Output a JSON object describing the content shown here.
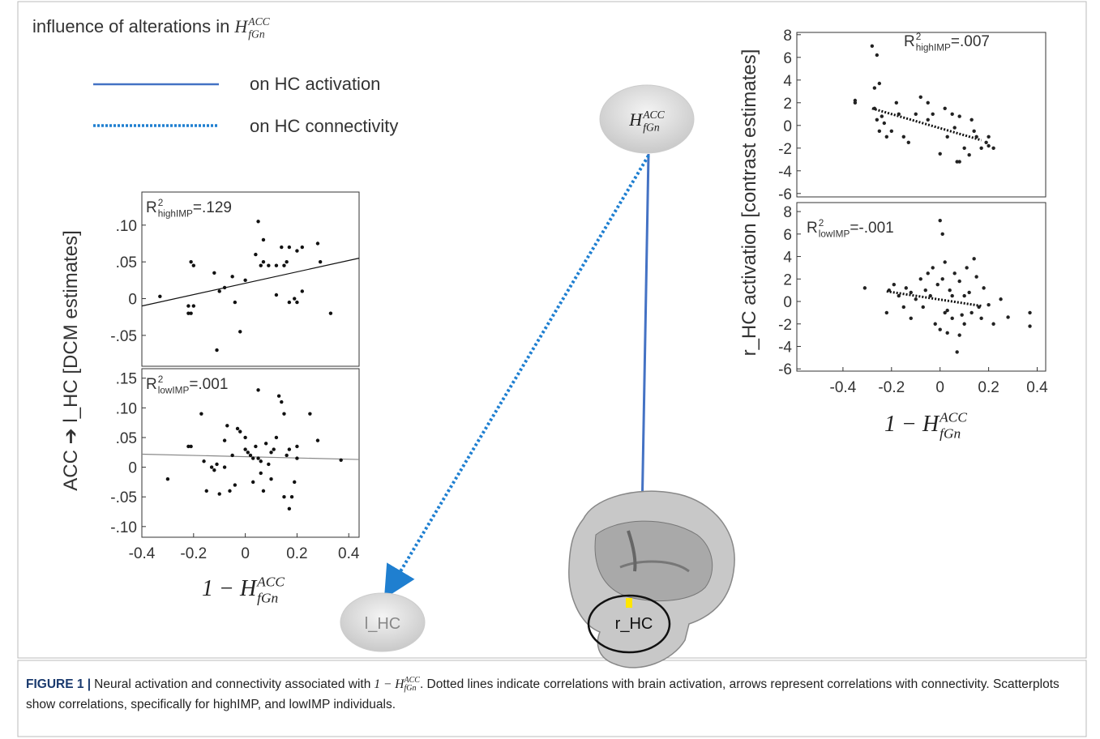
{
  "chart_data": [
    {
      "type": "scatter",
      "y_label": "ACC ➔ l_HC  [DCM estimates]",
      "annotation": {
        "base": "R",
        "superscript": "2",
        "subscript": "highIMP",
        "text": "=.129"
      },
      "x": [
        -0.33,
        -0.22,
        -0.21,
        -0.2,
        -0.2,
        -0.22,
        -0.21,
        -0.12,
        -0.1,
        -0.08,
        -0.05,
        -0.04,
        -0.02,
        0.0,
        -0.11,
        0.05,
        0.07,
        0.04,
        0.07,
        0.09,
        0.14,
        0.12,
        0.15,
        0.16,
        0.17,
        0.2,
        0.22,
        0.28,
        0.29,
        0.12,
        0.17,
        0.19,
        0.2,
        0.22,
        0.33,
        0.06
      ],
      "values": [
        0.003,
        -0.02,
        0.05,
        0.045,
        -0.01,
        -0.01,
        -0.02,
        0.035,
        0.01,
        0.015,
        0.03,
        -0.005,
        -0.045,
        0.025,
        -0.07,
        0.105,
        0.08,
        0.06,
        0.05,
        0.045,
        0.07,
        0.045,
        0.045,
        0.05,
        0.07,
        0.065,
        0.07,
        0.075,
        0.05,
        0.005,
        -0.005,
        0.0,
        -0.005,
        0.01,
        -0.02,
        0.045
      ],
      "color": "#111111",
      "fit": {
        "x": [
          -0.4,
          0.44
        ],
        "y": [
          -0.01,
          0.055
        ],
        "color": "#111111",
        "style": "solid"
      },
      "xlim": [
        -0.4,
        0.44
      ],
      "ylim": [
        -0.092,
        0.145
      ],
      "yticks": [
        {
          "value": 0.1,
          "label": ".10"
        },
        {
          "value": 0.05,
          "label": ".05"
        },
        0,
        {
          "value": -0.05,
          "label": "-.05"
        }
      ]
    },
    {
      "type": "scatter",
      "x_label": {
        "base": "1 − H",
        "superscript": "ACC",
        "subscript": "fGn"
      },
      "annotation": {
        "base": "R",
        "superscript": "2",
        "subscript": "lowIMP",
        "text": "=.001"
      },
      "x": [
        -0.3,
        -0.22,
        -0.21,
        -0.17,
        -0.15,
        -0.13,
        -0.12,
        -0.11,
        -0.1,
        -0.08,
        -0.07,
        -0.06,
        -0.05,
        -0.04,
        -0.03,
        -0.02,
        0.0,
        0.0,
        0.01,
        0.02,
        0.03,
        0.03,
        0.04,
        0.05,
        0.05,
        0.06,
        0.07,
        0.08,
        0.09,
        0.1,
        0.1,
        0.11,
        0.12,
        0.13,
        0.14,
        0.15,
        0.15,
        0.16,
        0.17,
        0.17,
        0.18,
        0.19,
        0.2,
        0.2,
        0.25,
        0.28,
        0.37,
        -0.16,
        -0.08,
        0.06
      ],
      "values": [
        -0.02,
        0.035,
        0.035,
        0.09,
        -0.04,
        0.0,
        -0.005,
        0.005,
        -0.045,
        0.045,
        0.07,
        -0.04,
        0.02,
        -0.03,
        0.065,
        0.06,
        0.05,
        0.03,
        0.025,
        0.02,
        -0.025,
        0.015,
        0.035,
        0.13,
        0.015,
        0.01,
        -0.04,
        0.04,
        0.005,
        0.025,
        -0.02,
        0.03,
        0.05,
        0.12,
        0.11,
        0.09,
        -0.05,
        0.02,
        -0.07,
        0.03,
        -0.05,
        -0.025,
        0.035,
        0.015,
        0.09,
        0.045,
        0.012,
        0.01,
        0.0,
        -0.01
      ],
      "color": "#111111",
      "fit": {
        "x": [
          -0.4,
          0.44
        ],
        "y": [
          0.022,
          0.013
        ],
        "color": "#888888",
        "style": "solid"
      },
      "xlim": [
        -0.4,
        0.44
      ],
      "ylim": [
        -0.118,
        0.166
      ],
      "xticks": [
        -0.4,
        -0.2,
        0,
        0.2,
        0.4
      ],
      "yticks": [
        {
          "value": 0.15,
          "label": ".15"
        },
        {
          "value": 0.1,
          "label": ".10"
        },
        {
          "value": 0.05,
          "label": ".05"
        },
        0,
        {
          "value": -0.05,
          "label": "-.05"
        },
        {
          "value": -0.1,
          "label": "-.10"
        }
      ]
    },
    {
      "type": "scatter",
      "y_label": "r_HC activation  [contrast estimates]",
      "annotation": {
        "base": "R",
        "superscript": "2",
        "subscript": "highIMP",
        "text": "=.007"
      },
      "x": [
        -0.35,
        -0.35,
        -0.28,
        -0.26,
        -0.27,
        -0.25,
        -0.26,
        -0.25,
        -0.24,
        -0.27,
        -0.22,
        -0.2,
        -0.18,
        -0.17,
        -0.15,
        -0.13,
        -0.1,
        -0.08,
        -0.05,
        -0.03,
        0.0,
        0.02,
        0.03,
        0.05,
        0.07,
        0.08,
        0.08,
        0.1,
        0.12,
        0.13,
        0.14,
        0.15,
        0.17,
        0.19,
        0.2,
        0.2,
        0.22,
        -0.05,
        0.06,
        -0.23
      ],
      "values": [
        2.0,
        2.2,
        7.0,
        6.2,
        3.3,
        3.7,
        0.5,
        -0.5,
        0.8,
        1.5,
        -1.0,
        -0.5,
        2.0,
        1.0,
        -1.0,
        -1.5,
        1.0,
        2.5,
        0.5,
        1.0,
        -2.5,
        1.5,
        -1.0,
        1.0,
        -3.2,
        -3.2,
        0.8,
        -2.0,
        -2.6,
        0.5,
        -0.5,
        -1.0,
        -2.0,
        -1.5,
        -1.8,
        -1.0,
        -2.0,
        2.0,
        -0.2,
        0.2
      ],
      "color": "#222222",
      "fit": {
        "x": [
          -0.28,
          0.17
        ],
        "y": [
          1.5,
          -1.3
        ],
        "color": "#111111",
        "style": "dotted"
      },
      "xlim": [
        -0.59,
        0.435
      ],
      "ylim": [
        -6.3,
        8.2
      ],
      "yticks": [
        8,
        6,
        4,
        2,
        0,
        -2,
        -4,
        -6
      ]
    },
    {
      "type": "scatter",
      "x_label": {
        "base": "1 − H",
        "superscript": "ACC",
        "subscript": "fGn"
      },
      "annotation": {
        "base": "R",
        "superscript": "2",
        "subscript": "lowIMP",
        "text": "=-.001"
      },
      "x": [
        -0.31,
        -0.22,
        -0.21,
        -0.19,
        -0.17,
        -0.15,
        -0.14,
        -0.12,
        -0.1,
        -0.08,
        -0.07,
        -0.06,
        -0.05,
        -0.04,
        -0.03,
        -0.02,
        -0.01,
        0.0,
        0.0,
        0.01,
        0.01,
        0.02,
        0.02,
        0.03,
        0.04,
        0.05,
        0.05,
        0.06,
        0.07,
        0.08,
        0.08,
        0.09,
        0.1,
        0.1,
        0.11,
        0.12,
        0.13,
        0.14,
        0.15,
        0.16,
        0.17,
        0.18,
        0.2,
        0.22,
        0.25,
        0.28,
        0.37,
        0.37,
        -0.12,
        0.03
      ],
      "values": [
        1.2,
        -1.0,
        1.0,
        1.5,
        0.5,
        -0.5,
        1.2,
        -1.5,
        0.2,
        2.0,
        -0.5,
        1.0,
        2.5,
        0.5,
        3.0,
        -2.0,
        1.5,
        7.2,
        -2.5,
        6.0,
        2.0,
        -1.0,
        3.5,
        -2.8,
        1.0,
        0.5,
        -1.5,
        2.5,
        -4.5,
        -3.0,
        1.8,
        -1.2,
        0.5,
        -2.0,
        3.0,
        0.8,
        -1.0,
        3.8,
        2.2,
        -0.5,
        -1.5,
        1.2,
        -0.3,
        -2.0,
        0.2,
        -1.4,
        -1.0,
        -2.2,
        0.8,
        -0.8
      ],
      "color": "#222222",
      "fit": {
        "x": [
          -0.22,
          0.17
        ],
        "y": [
          0.9,
          -0.4
        ],
        "color": "#111111",
        "style": "dotted"
      },
      "xlim": [
        -0.59,
        0.435
      ],
      "ylim": [
        -6.2,
        8.8
      ],
      "xticks": [
        -0.4,
        -0.2,
        0,
        0.2,
        0.4
      ],
      "yticks": [
        8,
        6,
        4,
        2,
        0,
        -2,
        -4,
        -6
      ]
    }
  ],
  "diagram": {
    "title": {
      "text": "influence of alterations in",
      "math": {
        "base": "H",
        "superscript": "ACC",
        "subscript": "fGn"
      }
    },
    "legend": [
      {
        "label": "on HC activation"
      },
      {
        "label": "on HC connectivity"
      }
    ],
    "nodes": [
      {
        "math": {
          "base": "H",
          "superscript": "ACC",
          "subscript": "fGn"
        }
      },
      {
        "label": "l_HC"
      },
      {
        "label": "r_HC"
      }
    ]
  },
  "caption": {
    "label": "FIGURE 1 |",
    "text": "Neural activation and connectivity associated with",
    "math": {
      "base": "1 − H",
      "superscript": "ACC",
      "subscript": "fGn"
    },
    "text_after": ". Dotted lines indicate correlations with brain activation, arrows represent correlations with connectivity. Scatterplots show correlations, specifically for highIMP, and lowIMP individuals."
  }
}
